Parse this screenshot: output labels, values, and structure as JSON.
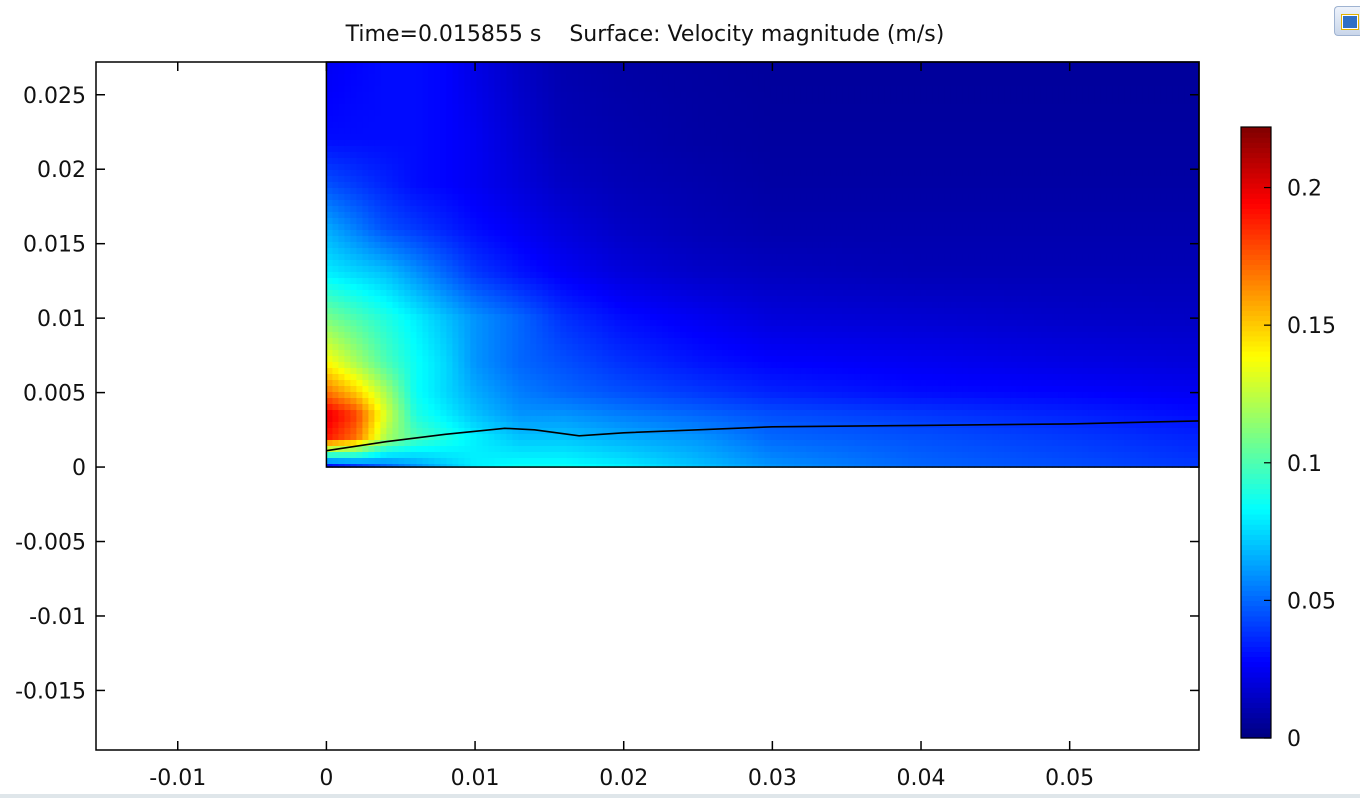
{
  "chart_data": {
    "type": "heatmap",
    "title": "Time=0.015855 s    Surface: Velocity magnitude (m/s)",
    "xlim": [
      -0.0155,
      0.0587
    ],
    "ylim": [
      -0.019,
      0.0272
    ],
    "x_ticks": [
      {
        "value": -0.01,
        "label": "-0.01"
      },
      {
        "value": 0,
        "label": "0"
      },
      {
        "value": 0.01,
        "label": "0.01"
      },
      {
        "value": 0.02,
        "label": "0.02"
      },
      {
        "value": 0.03,
        "label": "0.03"
      },
      {
        "value": 0.04,
        "label": "0.04"
      },
      {
        "value": 0.05,
        "label": "0.05"
      }
    ],
    "y_ticks": [
      {
        "value": 0.025,
        "label": "0.025"
      },
      {
        "value": 0.02,
        "label": "0.02"
      },
      {
        "value": 0.015,
        "label": "0.015"
      },
      {
        "value": 0.01,
        "label": "0.01"
      },
      {
        "value": 0.005,
        "label": "0.005"
      },
      {
        "value": 0,
        "label": "0"
      },
      {
        "value": -0.005,
        "label": "-0.005"
      },
      {
        "value": -0.01,
        "label": "-0.01"
      },
      {
        "value": -0.015,
        "label": "-0.015"
      }
    ],
    "domain": {
      "xmin": 0,
      "xmax": 0.0587,
      "ymin": 0,
      "ymax": 0.0272
    },
    "colorbar": {
      "min": 0,
      "max": 0.222,
      "colormap": "jet",
      "ticks": [
        {
          "value": 0,
          "label": "0"
        },
        {
          "value": 0.05,
          "label": "0.05"
        },
        {
          "value": 0.1,
          "label": "0.1"
        },
        {
          "value": 0.15,
          "label": "0.15"
        },
        {
          "value": 0.2,
          "label": "0.2"
        }
      ]
    },
    "velocity_field": {
      "x": [
        0,
        0.002,
        0.004,
        0.006,
        0.008,
        0.01,
        0.013,
        0.016,
        0.02,
        0.025,
        0.03,
        0.04,
        0.05,
        0.0587
      ],
      "y": [
        0,
        0.002,
        0.0035,
        0.005,
        0.007,
        0.01,
        0.013,
        0.016,
        0.019,
        0.022,
        0.0272
      ],
      "values": [
        [
          0.03,
          0.04,
          0.05,
          0.06,
          0.07,
          0.08,
          0.085,
          0.085,
          0.08,
          0.07,
          0.06,
          0.05,
          0.045,
          0.04
        ],
        [
          0.19,
          0.17,
          0.12,
          0.1,
          0.09,
          0.08,
          0.07,
          0.07,
          0.065,
          0.06,
          0.05,
          0.045,
          0.04,
          0.035
        ],
        [
          0.2,
          0.18,
          0.13,
          0.09,
          0.08,
          0.07,
          0.06,
          0.06,
          0.055,
          0.05,
          0.045,
          0.04,
          0.035,
          0.03
        ],
        [
          0.17,
          0.15,
          0.12,
          0.085,
          0.075,
          0.065,
          0.055,
          0.05,
          0.045,
          0.04,
          0.035,
          0.03,
          0.028,
          0.025
        ],
        [
          0.14,
          0.12,
          0.1,
          0.085,
          0.075,
          0.06,
          0.05,
          0.045,
          0.038,
          0.032,
          0.028,
          0.025,
          0.022,
          0.02
        ],
        [
          0.11,
          0.1,
          0.09,
          0.08,
          0.07,
          0.06,
          0.05,
          0.038,
          0.03,
          0.025,
          0.02,
          0.018,
          0.016,
          0.015
        ],
        [
          0.08,
          0.075,
          0.07,
          0.06,
          0.05,
          0.04,
          0.032,
          0.026,
          0.02,
          0.016,
          0.014,
          0.012,
          0.012,
          0.012
        ],
        [
          0.065,
          0.055,
          0.045,
          0.04,
          0.035,
          0.03,
          0.025,
          0.02,
          0.015,
          0.012,
          0.01,
          0.01,
          0.01,
          0.01
        ],
        [
          0.045,
          0.04,
          0.035,
          0.03,
          0.028,
          0.025,
          0.02,
          0.015,
          0.012,
          0.01,
          0.008,
          0.008,
          0.008,
          0.008
        ],
        [
          0.03,
          0.03,
          0.03,
          0.03,
          0.028,
          0.025,
          0.018,
          0.012,
          0.01,
          0.008,
          0.007,
          0.007,
          0.007,
          0.007
        ],
        [
          0.025,
          0.028,
          0.03,
          0.03,
          0.028,
          0.022,
          0.015,
          0.01,
          0.008,
          0.007,
          0.006,
          0.006,
          0.006,
          0.006
        ]
      ]
    },
    "interface_line": {
      "x": [
        0,
        0.004,
        0.008,
        0.01,
        0.012,
        0.014,
        0.017,
        0.02,
        0.025,
        0.03,
        0.04,
        0.05,
        0.0587
      ],
      "y": [
        0.0011,
        0.0017,
        0.0022,
        0.0024,
        0.0026,
        0.0025,
        0.0021,
        0.0023,
        0.0025,
        0.0027,
        0.0028,
        0.0029,
        0.0031
      ]
    }
  }
}
